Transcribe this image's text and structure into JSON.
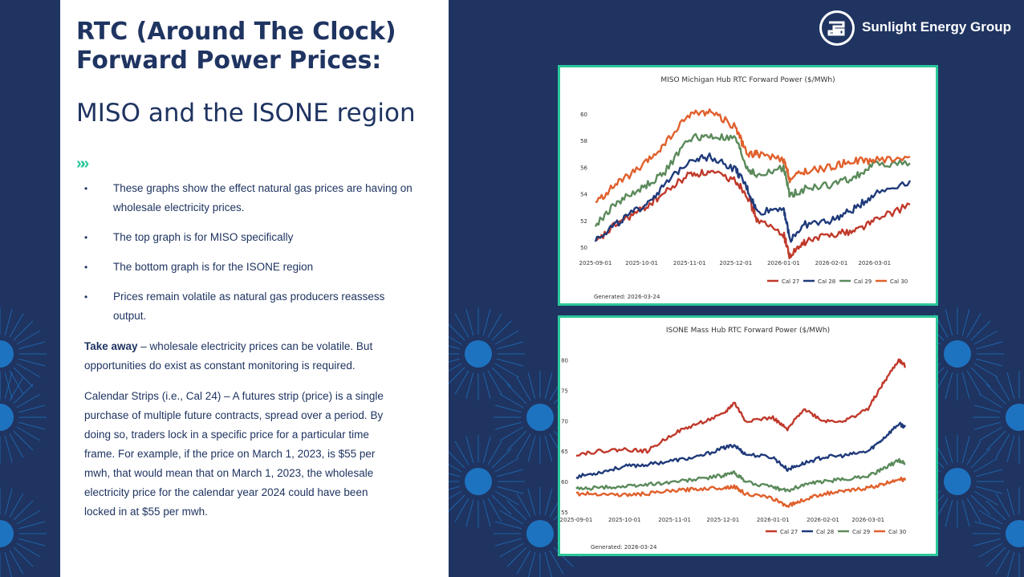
{
  "slide": {
    "title": "RTC (Around The Clock) Forward Power Prices:",
    "subtitle": "MISO and the ISONE region",
    "chevron": "»»",
    "bullets": [
      "These graphs show the effect natural gas prices are having on wholesale electricity prices.",
      "The top graph is for MISO specifically",
      "The bottom graph is for the ISONE region",
      "Prices remain volatile as natural gas producers reassess output."
    ],
    "takeaway_label": "Take away",
    "takeaway_text": " – wholesale electricity prices can be volatile. But opportunities do exist as constant monitoring is required.",
    "calendar_text": "Calendar Strips (i.e., Cal 24) – A futures strip (price) is a single purchase of multiple future contracts, spread over a period. By doing so, traders lock in a specific price for a particular time frame. For example, if the price on March 1, 2023, is $55 per mwh, that would mean that on March 1, 2023, the wholesale electricity price for the calendar year 2024 could have been locked in at $55 per mwh."
  },
  "brand": {
    "name": "Sunlight Energy Group",
    "logo_icon": "sunlight-logo-icon",
    "colors": {
      "navy": "#1f3461",
      "accent": "#2bc79a",
      "sun_blue": "#1e73c0"
    }
  },
  "chart_data": [
    {
      "type": "line",
      "title": "MISO Michigan Hub RTC Forward Power ($/MWh)",
      "xlabel": "",
      "ylabel": "",
      "x_ticks": [
        "2025-09-01",
        "2025-10-01",
        "2025-11-01",
        "2025-12-01",
        "2026-01-01",
        "2026-02-01",
        "2026-03-01"
      ],
      "y_ticks": [
        50,
        52,
        54,
        56,
        58,
        60
      ],
      "ylim": [
        49.4,
        60.6
      ],
      "grid": false,
      "legend_position": "bottom-right",
      "footer": "Generated: 2026-03-24",
      "x": [
        "2025-09-01",
        "2025-09-15",
        "2025-10-01",
        "2025-10-15",
        "2025-11-01",
        "2025-11-15",
        "2025-12-01",
        "2025-12-08",
        "2025-12-15",
        "2026-01-01",
        "2026-01-05",
        "2026-01-15",
        "2026-02-01",
        "2026-02-15",
        "2026-03-01",
        "2026-03-24"
      ],
      "series": [
        {
          "name": "Cal 27",
          "color": "#c0392b",
          "values": [
            50.3,
            51.8,
            52.8,
            54.0,
            55.5,
            55.6,
            55.0,
            54.0,
            52.0,
            51.0,
            49.3,
            50.4,
            51.0,
            51.2,
            52.0,
            53.2
          ]
        },
        {
          "name": "Cal 28",
          "color": "#1f3a7a",
          "values": [
            50.6,
            51.8,
            53.0,
            54.5,
            56.6,
            56.8,
            55.8,
            54.5,
            52.6,
            53.0,
            50.6,
            51.7,
            52.0,
            52.8,
            54.0,
            55.0
          ]
        },
        {
          "name": "Cal 29",
          "color": "#5b8a5b",
          "values": [
            51.6,
            53.4,
            54.4,
            55.5,
            58.2,
            58.3,
            58.1,
            56.0,
            55.3,
            56.0,
            53.9,
            54.4,
            54.7,
            55.2,
            56.2,
            56.3
          ]
        },
        {
          "name": "Cal 30",
          "color": "#e0602c",
          "values": [
            53.3,
            54.8,
            56.0,
            57.6,
            60.0,
            60.2,
            59.0,
            57.0,
            57.0,
            56.5,
            55.1,
            55.7,
            56.0,
            56.5,
            56.5,
            56.8
          ]
        }
      ]
    },
    {
      "type": "line",
      "title": "ISONE Mass Hub RTC Forward Power ($/MWh)",
      "xlabel": "",
      "ylabel": "",
      "x_ticks": [
        "2025-09-01",
        "2025-10-01",
        "2025-11-01",
        "2025-12-01",
        "2026-01-01",
        "2026-02-01",
        "2026-03-01"
      ],
      "y_ticks": [
        55,
        60,
        65,
        70,
        75,
        80
      ],
      "ylim": [
        55.0,
        81.0
      ],
      "grid": false,
      "legend_position": "bottom-right",
      "footer": "Generated: 2026-03-24",
      "x": [
        "2025-09-01",
        "2025-09-15",
        "2025-10-01",
        "2025-10-15",
        "2025-11-01",
        "2025-11-15",
        "2025-12-01",
        "2025-12-08",
        "2025-12-15",
        "2026-01-01",
        "2026-01-10",
        "2026-01-20",
        "2026-02-01",
        "2026-02-15",
        "2026-03-01",
        "2026-03-10",
        "2026-03-20",
        "2026-03-24"
      ],
      "series": [
        {
          "name": "Cal 27",
          "color": "#c0392b",
          "values": [
            64.5,
            65.0,
            65.3,
            65.0,
            68.0,
            69.5,
            71.0,
            73.0,
            70.0,
            70.5,
            68.5,
            72.0,
            70.0,
            70.0,
            72.0,
            76.0,
            80.0,
            79.0
          ]
        },
        {
          "name": "Cal 28",
          "color": "#1f3a7a",
          "values": [
            60.8,
            61.5,
            62.5,
            62.8,
            63.5,
            64.0,
            65.5,
            66.0,
            64.5,
            64.0,
            62.0,
            63.0,
            64.0,
            64.3,
            65.0,
            67.0,
            69.5,
            69.0
          ]
        },
        {
          "name": "Cal 29",
          "color": "#5b8a5b",
          "values": [
            58.8,
            59.0,
            59.2,
            59.5,
            60.0,
            60.4,
            61.0,
            61.5,
            60.0,
            59.0,
            58.5,
            59.5,
            60.0,
            60.4,
            61.0,
            62.0,
            63.5,
            63.0
          ]
        },
        {
          "name": "Cal 30",
          "color": "#e0602c",
          "values": [
            58.0,
            58.0,
            57.8,
            58.0,
            58.5,
            58.8,
            59.0,
            59.2,
            58.0,
            57.2,
            56.0,
            57.0,
            58.0,
            58.4,
            59.0,
            59.5,
            60.5,
            60.2
          ]
        }
      ]
    }
  ]
}
